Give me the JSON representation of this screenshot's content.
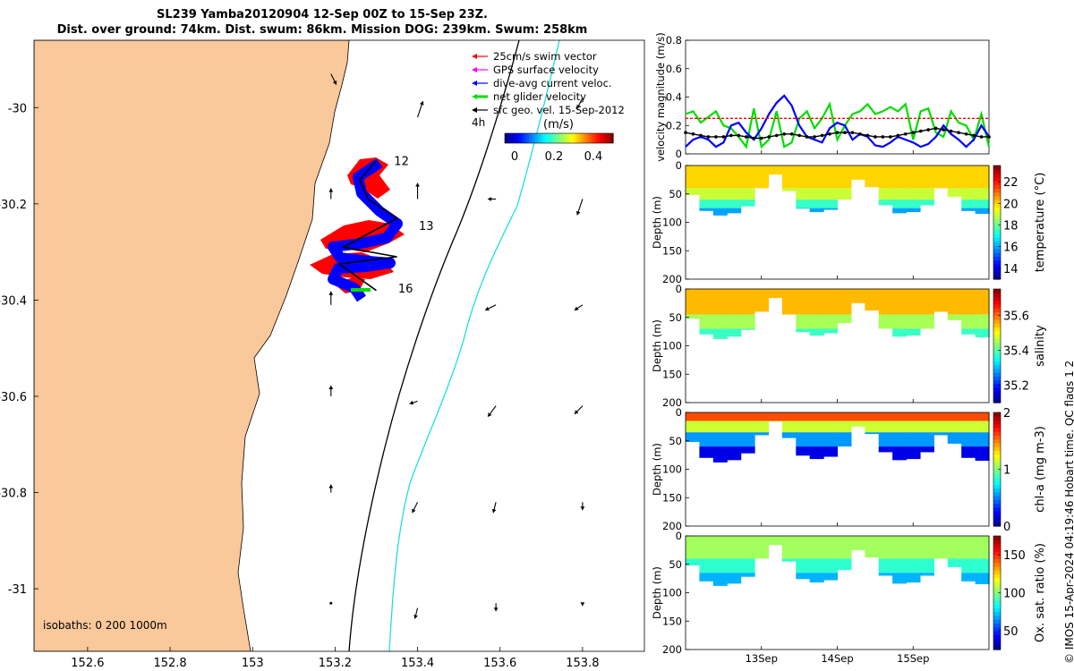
{
  "header": {
    "title_line1": "SL239 Yamba20120904 12-Sep 00Z to 15-Sep 23Z.",
    "title_line2": "Dist. over ground: 74km. Dist. swum: 86km. Mission DOG: 239km. Swum: 258km"
  },
  "credit": "© IMOS 15-Apr-2024 04:19:46 Hobart time. QC flags 1  2",
  "colors": {
    "land": "#f9c89b",
    "swim_vector": "#ff0000",
    "gps_velocity": "#ff00ff",
    "current_velocity": "#0000ff",
    "net_velocity": "#00dd00",
    "geo_velocity": "#000000",
    "isobath_200": "#000000",
    "isobath_1000": "#22dddd"
  },
  "chart_data": [
    {
      "type": "scatter",
      "id": "track_map",
      "xlim": [
        152.47,
        153.95
      ],
      "ylim": [
        -31.13,
        -29.86
      ],
      "xticks": [
        152.6,
        152.8,
        153.0,
        153.2,
        153.4,
        153.6,
        153.8
      ],
      "xtick_labels": [
        "152.6",
        "152.8",
        "153",
        "153.2",
        "153.4",
        "153.6",
        "153.8"
      ],
      "yticks": [
        -30.0,
        -30.2,
        -30.4,
        -30.6,
        -30.8,
        -31.0
      ],
      "ytick_labels": [
        "-30",
        "-30.2",
        "-30.4",
        "-30.6",
        "-30.8",
        "-31"
      ],
      "legend": {
        "placement": "top-right",
        "entries": [
          "25cm/s swim vector",
          "GPS surface velocity",
          "dive-avg current veloc.",
          "net glider velocity",
          "sfc geo. vel. 15-Sep-2012"
        ],
        "colors": [
          "#ff0000",
          "#ff00ff",
          "#0000ff",
          "#00dd00",
          "#000000"
        ]
      },
      "time_scale_label": "4h",
      "colorbar": {
        "label": "(m/s)",
        "range": [
          -0.05,
          0.5
        ],
        "ticks": [
          0,
          0.2,
          0.4
        ],
        "tick_labels": [
          "0",
          "0.2",
          "0.4"
        ]
      },
      "isobaths_label": "isobaths: 0   200  1000m",
      "day_labels": [
        {
          "text": "12",
          "lon": 153.33,
          "lat": -30.11
        },
        {
          "text": "13",
          "lon": 153.39,
          "lat": -30.245
        },
        {
          "text": "16",
          "lon": 153.34,
          "lat": -30.375
        }
      ],
      "track": [
        {
          "lon": 153.3,
          "lat": -30.11
        },
        {
          "lon": 153.26,
          "lat": -30.15
        },
        {
          "lon": 153.28,
          "lat": -30.19
        },
        {
          "lon": 153.35,
          "lat": -30.23
        },
        {
          "lon": 153.22,
          "lat": -30.29
        },
        {
          "lon": 153.35,
          "lat": -30.31
        },
        {
          "lon": 153.21,
          "lat": -30.325
        },
        {
          "lon": 153.3,
          "lat": -30.38
        }
      ],
      "geo_velocity_arrows": [
        {
          "lon": 153.19,
          "lat": -29.93,
          "u": 0.02,
          "v": -0.04
        },
        {
          "lon": 153.19,
          "lat": -30.19,
          "u": 0.0,
          "v": 0.04
        },
        {
          "lon": 153.4,
          "lat": -30.02,
          "u": 0.02,
          "v": 0.06
        },
        {
          "lon": 153.4,
          "lat": -30.19,
          "u": 0.0,
          "v": 0.06
        },
        {
          "lon": 153.59,
          "lat": -30.19,
          "u": -0.03,
          "v": 0.0
        },
        {
          "lon": 153.8,
          "lat": -30.19,
          "u": -0.02,
          "v": -0.06
        },
        {
          "lon": 153.8,
          "lat": -29.98,
          "u": -0.02,
          "v": -0.04
        },
        {
          "lon": 153.59,
          "lat": -30.41,
          "u": -0.04,
          "v": -0.02
        },
        {
          "lon": 153.8,
          "lat": -30.41,
          "u": -0.03,
          "v": -0.02
        },
        {
          "lon": 153.19,
          "lat": -30.41,
          "u": 0.0,
          "v": 0.05
        },
        {
          "lon": 153.19,
          "lat": -30.6,
          "u": 0.0,
          "v": 0.04
        },
        {
          "lon": 153.4,
          "lat": -30.61,
          "u": -0.03,
          "v": -0.01
        },
        {
          "lon": 153.59,
          "lat": -30.62,
          "u": -0.03,
          "v": -0.04
        },
        {
          "lon": 153.8,
          "lat": -30.62,
          "u": -0.03,
          "v": -0.03
        },
        {
          "lon": 153.19,
          "lat": -30.8,
          "u": 0.0,
          "v": 0.03
        },
        {
          "lon": 153.4,
          "lat": -30.82,
          "u": -0.02,
          "v": -0.04
        },
        {
          "lon": 153.59,
          "lat": -30.82,
          "u": -0.01,
          "v": -0.04
        },
        {
          "lon": 153.8,
          "lat": -30.82,
          "u": 0.0,
          "v": -0.03
        },
        {
          "lon": 153.19,
          "lat": -31.03,
          "u": 0.0,
          "v": 0.0
        },
        {
          "lon": 153.4,
          "lat": -31.04,
          "u": -0.01,
          "v": -0.04
        },
        {
          "lon": 153.59,
          "lat": -31.03,
          "u": 0.0,
          "v": -0.03
        },
        {
          "lon": 153.8,
          "lat": -31.03,
          "u": 0.0,
          "v": -0.01
        }
      ]
    },
    {
      "type": "line",
      "id": "velocity_magnitude",
      "ylabel": "velocity magnitude (m/s)",
      "ylim": [
        0,
        0.8
      ],
      "yticks": [
        0,
        0.2,
        0.4,
        0.6,
        0.8
      ],
      "ytick_labels": [
        "0",
        "0.2",
        "0.4",
        "0.6",
        "0.8"
      ],
      "x": [
        0,
        0.1,
        0.2,
        0.3,
        0.4,
        0.5,
        0.6,
        0.7,
        0.8,
        0.9,
        1.0,
        1.1,
        1.2,
        1.3,
        1.4,
        1.5,
        1.6,
        1.7,
        1.8,
        1.9,
        2.0,
        2.1,
        2.2,
        2.3,
        2.4,
        2.5,
        2.6,
        2.7,
        2.8,
        2.9,
        3.0,
        3.1,
        3.2,
        3.3,
        3.4,
        3.5,
        3.6,
        3.7,
        3.8,
        3.9,
        4.0
      ],
      "series": [
        {
          "color": "#00dd00",
          "values": [
            0.28,
            0.3,
            0.22,
            0.26,
            0.3,
            0.2,
            0.18,
            0.12,
            0.05,
            0.32,
            0.05,
            0.1,
            0.3,
            0.05,
            0.08,
            0.25,
            0.3,
            0.18,
            0.25,
            0.35,
            0.1,
            0.2,
            0.28,
            0.3,
            0.35,
            0.28,
            0.3,
            0.33,
            0.3,
            0.35,
            0.1,
            0.3,
            0.32,
            0.15,
            0.12,
            0.3,
            0.22,
            0.2,
            0.1,
            0.28,
            0.05
          ]
        },
        {
          "color": "#0000ff",
          "values": [
            0.05,
            0.1,
            0.12,
            0.1,
            0.05,
            0.08,
            0.2,
            0.22,
            0.15,
            0.1,
            0.18,
            0.28,
            0.36,
            0.41,
            0.34,
            0.2,
            0.12,
            0.1,
            0.08,
            0.18,
            0.22,
            0.2,
            0.1,
            0.14,
            0.12,
            0.06,
            0.05,
            0.08,
            0.12,
            0.1,
            0.08,
            0.05,
            0.07,
            0.12,
            0.2,
            0.14,
            0.1,
            0.05,
            0.1,
            0.2,
            0.12
          ]
        },
        {
          "color": "#000000",
          "values": [
            0.15,
            0.14,
            0.13,
            0.12,
            0.12,
            0.12,
            0.13,
            0.13,
            0.12,
            0.11,
            0.11,
            0.12,
            0.13,
            0.14,
            0.14,
            0.13,
            0.12,
            0.12,
            0.13,
            0.14,
            0.15,
            0.15,
            0.15,
            0.14,
            0.13,
            0.12,
            0.12,
            0.12,
            0.13,
            0.14,
            0.15,
            0.16,
            0.17,
            0.18,
            0.17,
            0.16,
            0.15,
            0.14,
            0.13,
            0.12,
            0.12
          ]
        },
        {
          "color": "#ff0000",
          "style": "dashed",
          "values": [
            0.25,
            0.25,
            0.25,
            0.25,
            0.25,
            0.25,
            0.25,
            0.25,
            0.25,
            0.25,
            0.25,
            0.25,
            0.25,
            0.25,
            0.25,
            0.25,
            0.25,
            0.25,
            0.25,
            0.25,
            0.25,
            0.25,
            0.25,
            0.25,
            0.25,
            0.25,
            0.25,
            0.25,
            0.25,
            0.25,
            0.25,
            0.25,
            0.25,
            0.25,
            0.25,
            0.25,
            0.25,
            0.25,
            0.25,
            0.25,
            0.25
          ]
        }
      ]
    },
    {
      "type": "heatmap",
      "id": "temperature_section",
      "ylabel": "Depth (m)",
      "ylim": [
        200,
        0
      ],
      "yticks": [
        0,
        50,
        100,
        150,
        200
      ],
      "clabel": "temperature (°C)",
      "crange": [
        13,
        23.5
      ],
      "cticks": [
        14,
        16,
        18,
        20,
        22
      ],
      "ctick_labels": [
        "14",
        "16",
        "18",
        "20",
        "22"
      ]
    },
    {
      "type": "heatmap",
      "id": "salinity_section",
      "ylabel": "Depth (m)",
      "ylim": [
        200,
        0
      ],
      "yticks": [
        0,
        50,
        100,
        150,
        200
      ],
      "clabel": "salinity",
      "crange": [
        35.1,
        35.75
      ],
      "cticks": [
        35.2,
        35.4,
        35.6
      ],
      "ctick_labels": [
        "35.2",
        "35.4",
        "35.6"
      ]
    },
    {
      "type": "heatmap",
      "id": "chla_section",
      "ylabel": "Depth (m)",
      "ylim": [
        200,
        0
      ],
      "yticks": [
        0,
        50,
        100,
        150,
        200
      ],
      "clabel": "chl-a (mg m-3)",
      "crange": [
        0,
        2
      ],
      "cticks": [
        0,
        1,
        2
      ],
      "ctick_labels": [
        "0",
        "1",
        "2"
      ]
    },
    {
      "type": "heatmap",
      "id": "oxygen_section",
      "ylabel": "Depth (m)",
      "ylim": [
        200,
        0
      ],
      "yticks": [
        0,
        50,
        100,
        150,
        200
      ],
      "clabel": "Ox. sat. ratio (%)",
      "crange": [
        25,
        175
      ],
      "cticks": [
        50,
        100,
        150
      ],
      "ctick_labels": [
        "50",
        "100",
        "150"
      ]
    }
  ],
  "time_axis": {
    "ticks": [
      1,
      2,
      3
    ],
    "tick_labels": [
      "13Sep",
      "14Sep",
      "15Sep"
    ],
    "range": [
      0,
      4
    ]
  },
  "section_data": {
    "dive_bottom_depths_m": [
      52,
      80,
      88,
      84,
      72,
      40,
      16,
      45,
      76,
      82,
      78,
      60,
      25,
      38,
      70,
      84,
      82,
      70,
      40,
      55,
      80,
      85
    ],
    "temperature_layers": [
      {
        "depth_max": 40,
        "value": 20
      },
      {
        "depth_max": 60,
        "value": 19
      },
      {
        "depth_max": 75,
        "value": 17.5
      },
      {
        "depth_max": 200,
        "value": 16
      }
    ],
    "salinity_layers": [
      {
        "depth_max": 45,
        "value": 35.55
      },
      {
        "depth_max": 70,
        "value": 35.45
      },
      {
        "depth_max": 200,
        "value": 35.38
      }
    ],
    "chla_layers": [
      {
        "depth_max": 15,
        "value": 1.6
      },
      {
        "depth_max": 35,
        "value": 1.15
      },
      {
        "depth_max": 60,
        "value": 0.55
      },
      {
        "depth_max": 200,
        "value": 0.2
      }
    ],
    "oxygen_layers": [
      {
        "depth_max": 40,
        "value": 105
      },
      {
        "depth_max": 65,
        "value": 88
      },
      {
        "depth_max": 200,
        "value": 70
      }
    ]
  }
}
